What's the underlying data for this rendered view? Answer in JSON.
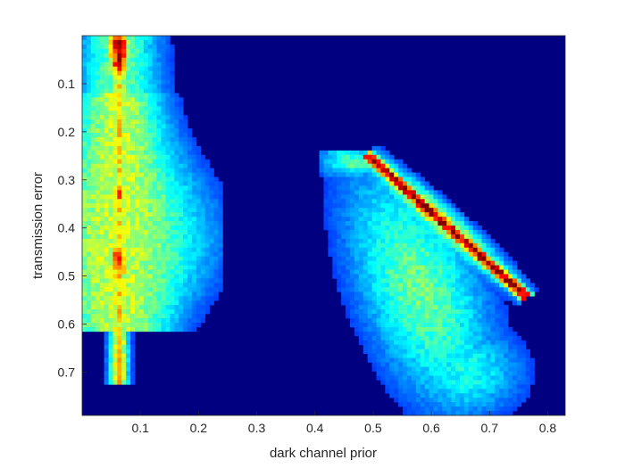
{
  "chart_data": {
    "type": "heatmap",
    "title": "",
    "xlabel": "dark channel prior",
    "ylabel": "transmission error",
    "xlim": [
      0.0,
      0.83
    ],
    "ylim": [
      0.0,
      0.79
    ],
    "y_reversed": true,
    "xticks": [
      0.1,
      0.2,
      0.3,
      0.4,
      0.5,
      0.6,
      0.7,
      0.8
    ],
    "xtick_labels": [
      "0.1",
      "0.2",
      "0.3",
      "0.4",
      "0.5",
      "0.6",
      "0.7",
      "0.8"
    ],
    "yticks": [
      0.1,
      0.2,
      0.3,
      0.4,
      0.5,
      0.6,
      0.7
    ],
    "ytick_labels": [
      "0.1",
      "0.2",
      "0.3",
      "0.4",
      "0.5",
      "0.6",
      "0.7"
    ],
    "colormap": "jet",
    "background_value": 0,
    "grid": false,
    "density_regions": [
      {
        "name": "",
        "x_range": [
          0.0,
          0.24
        ],
        "y_range": [
          0.0,
          0.72
        ],
        "peak_x": 0.063,
        "peak_y_values": [
          0.03,
          0.33,
          0.47
        ],
        "max_intensity": 0.95
      },
      {
        "name": "",
        "x_range": [
          0.41,
          0.83
        ],
        "y_range": [
          0.24,
          0.79
        ],
        "ridge_start": [
          0.5,
          0.26
        ],
        "ridge_end": [
          0.76,
          0.54
        ],
        "max_intensity": 1.0
      }
    ]
  }
}
